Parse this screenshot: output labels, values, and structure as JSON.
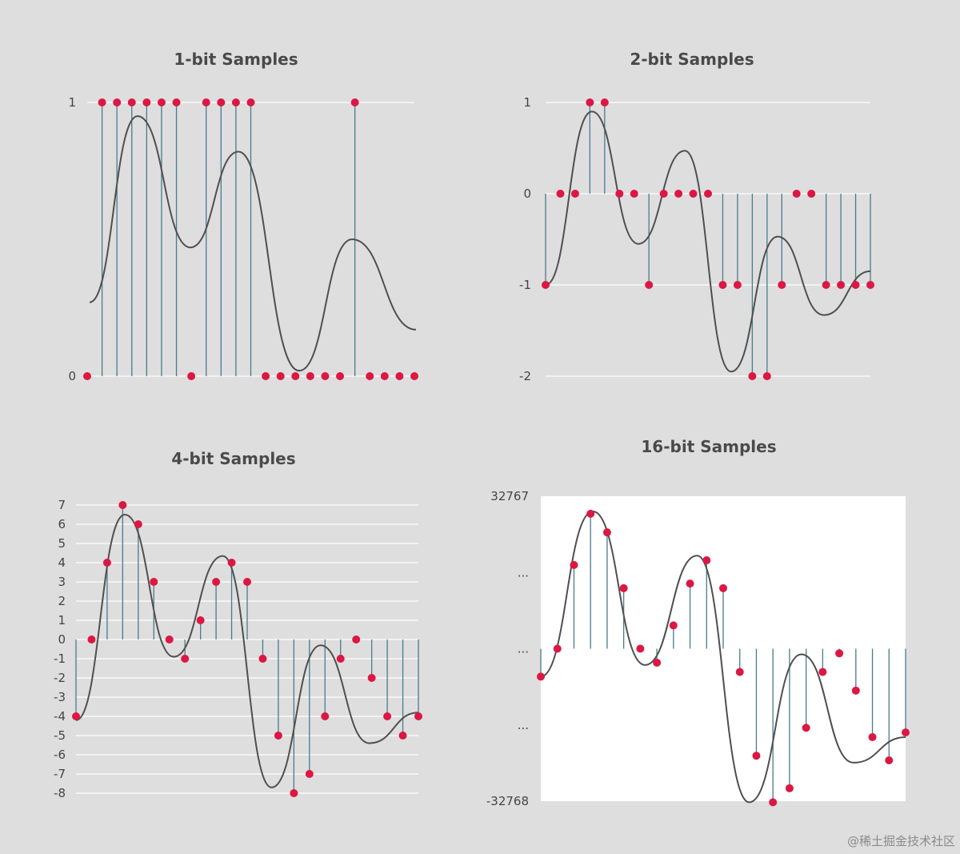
{
  "watermark": "@稀土掘金技术社区",
  "chart_data": [
    {
      "type": "scatter",
      "title": "1-bit Samples",
      "y_ticks": [
        "0",
        "1"
      ],
      "ylim": [
        0,
        1
      ],
      "samples": [
        0,
        1,
        1,
        1,
        1,
        1,
        1,
        0,
        1,
        1,
        1,
        1,
        0,
        0,
        0,
        0,
        0,
        0,
        1,
        0,
        0,
        0,
        0
      ],
      "wave": [
        0.27,
        0.95,
        0.47,
        0.82,
        0.02,
        0.5,
        0.17
      ],
      "plot_background": "#dedede"
    },
    {
      "type": "scatter",
      "title": "2-bit Samples",
      "y_ticks": [
        "1",
        "0",
        "-1",
        "-2"
      ],
      "ylim": [
        -2,
        1
      ],
      "samples": [
        -1,
        0,
        0,
        1,
        1,
        0,
        0,
        -1,
        0,
        0,
        0,
        0,
        -1,
        -1,
        -2,
        -2,
        -1,
        0,
        0,
        -1,
        -1,
        -1,
        -1
      ],
      "wave": [
        -1.0,
        0.9,
        -0.55,
        0.47,
        -1.95,
        -0.47,
        -1.33,
        -0.85
      ],
      "plot_background": "#dedede"
    },
    {
      "type": "scatter",
      "title": "4-bit Samples",
      "y_ticks": [
        "7",
        "6",
        "5",
        "4",
        "3",
        "2",
        "1",
        "0",
        "-1",
        "-2",
        "-3",
        "-4",
        "-5",
        "-6",
        "-7",
        "-8"
      ],
      "ylim": [
        -8,
        7
      ],
      "samples": [
        -4,
        0,
        4,
        7,
        6,
        3,
        0,
        -1,
        1,
        3,
        4,
        3,
        -1,
        -5,
        -8,
        -7,
        -4,
        -1,
        0,
        -2,
        -4,
        -5,
        -4
      ],
      "wave": [
        -4.2,
        6.5,
        -0.9,
        4.35,
        -7.7,
        -0.3,
        -5.4,
        -3.8
      ],
      "plot_background": "#dedede"
    },
    {
      "type": "scatter",
      "title": "16-bit Samples",
      "y_ticks": [
        "32767",
        "...",
        "...",
        "...",
        "-32768"
      ],
      "ylim": [
        -32768,
        32767
      ],
      "samples": [
        -6000,
        0,
        18000,
        29000,
        25000,
        13000,
        0,
        -3000,
        5000,
        14000,
        19000,
        13000,
        -5000,
        -23000,
        -33000,
        -30000,
        -17000,
        -5000,
        -1000,
        -9000,
        -19000,
        -24000,
        -18000
      ],
      "wave": [
        -6000,
        29500,
        -3500,
        20000,
        -33000,
        -1200,
        -24500,
        -19000
      ],
      "plot_background": "#ffffff"
    }
  ],
  "colors": {
    "sample_dot": "#dc1743",
    "stem": "#4a7a8c",
    "curve": "#4f4f4f",
    "gridline": "#ffffff"
  }
}
